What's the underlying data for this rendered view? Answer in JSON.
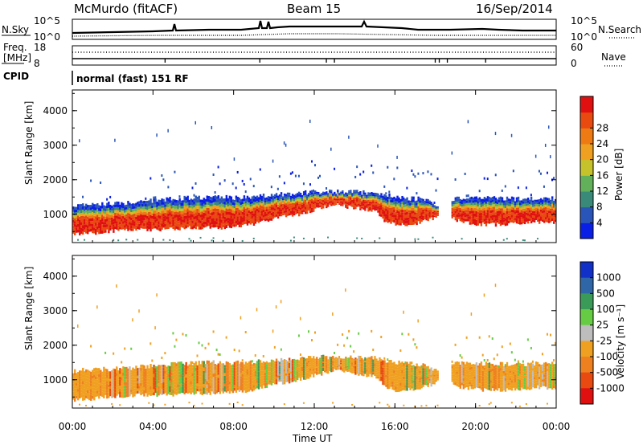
{
  "header": {
    "station": "McMurdo (fitACF)",
    "beam": "Beam 15",
    "date": "16/Sep/2014"
  },
  "strip": {
    "nsky_label": "N.Sky",
    "nsearch_label": "N.Search",
    "freq_label": "Freq.",
    "freq_unit": "[MHz]",
    "nave_label": "Nave",
    "cpid_label": "CPID",
    "cpid_text": "normal (fast) 151 RF",
    "noise_left_ticks": [
      "10^5",
      "10^0"
    ],
    "noise_right_ticks": [
      "10^5",
      "10^0"
    ],
    "freq_ticks": [
      "18",
      "8"
    ],
    "nave_ticks": [
      "60",
      "0"
    ]
  },
  "chart_data": [
    {
      "type": "heatmap",
      "title": "",
      "xlabel": "Time UT",
      "ylabel": "Slant Range [km]",
      "x_ticks": [
        "00:00",
        "04:00",
        "08:00",
        "12:00",
        "16:00",
        "20:00",
        "00:00"
      ],
      "y_ticks": [
        "1000",
        "2000",
        "3000",
        "4000"
      ],
      "ylim": [
        180,
        4600
      ],
      "colorbar": {
        "label": "Power [dB]",
        "ticks": [
          "4",
          "8",
          "12",
          "16",
          "20",
          "24",
          "28"
        ],
        "colors": [
          "#0a1fe6",
          "#2a55b8",
          "#3a8a7a",
          "#62b15a",
          "#c6c22c",
          "#f0a020",
          "#ee7a14",
          "#e84a10",
          "#e01010"
        ]
      },
      "echo_region": {
        "x_hours": [
          0,
          1,
          2,
          3,
          4,
          5,
          6,
          7,
          8,
          9,
          10,
          11,
          12,
          13,
          14,
          15,
          15.5,
          16,
          17,
          17.5,
          18,
          18.5,
          19,
          20,
          21,
          22,
          23,
          24
        ],
        "lower_km": [
          420,
          450,
          520,
          540,
          560,
          560,
          620,
          600,
          620,
          700,
          880,
          960,
          1120,
          1280,
          1180,
          1100,
          820,
          700,
          720,
          800,
          900,
          1100,
          820,
          720,
          700,
          720,
          780,
          760
        ],
        "upper_km": [
          1250,
          1300,
          1310,
          1350,
          1400,
          1450,
          1480,
          1500,
          1480,
          1520,
          1560,
          1600,
          1650,
          1660,
          1640,
          1620,
          1560,
          1500,
          1450,
          1450,
          1280,
          1200,
          1460,
          1480,
          1460,
          1440,
          1460,
          1450
        ],
        "gap_hours": [
          [
            18.2,
            18.8
          ]
        ]
      }
    },
    {
      "type": "heatmap",
      "title": "",
      "xlabel": "Time UT",
      "ylabel": "Slant Range [km]",
      "x_ticks": [
        "00:00",
        "04:00",
        "08:00",
        "12:00",
        "16:00",
        "20:00",
        "00:00"
      ],
      "y_ticks": [
        "1000",
        "2000",
        "3000",
        "4000"
      ],
      "ylim": [
        180,
        4600
      ],
      "colorbar": {
        "label": "Velocity [m s⁻¹]",
        "ticks": [
          "1000",
          "500",
          "100",
          "25",
          "-25",
          "-100",
          "-500",
          "-1000"
        ],
        "colors": [
          "#1030c8",
          "#2f66a8",
          "#3a9a58",
          "#66cc44",
          "#bdbdbd",
          "#f0a020",
          "#ee8020",
          "#e84a10",
          "#e01010"
        ]
      },
      "echo_region": {
        "x_hours": [
          0,
          1,
          2,
          3,
          4,
          5,
          6,
          7,
          8,
          9,
          10,
          11,
          12,
          13,
          14,
          15,
          15.5,
          16,
          17,
          17.5,
          18,
          18.5,
          19,
          20,
          21,
          22,
          23,
          24
        ],
        "lower_km": [
          420,
          450,
          520,
          540,
          560,
          560,
          620,
          600,
          620,
          700,
          880,
          960,
          1120,
          1280,
          1180,
          1100,
          820,
          700,
          720,
          800,
          900,
          1100,
          820,
          720,
          700,
          720,
          780,
          760
        ],
        "upper_km": [
          1250,
          1300,
          1310,
          1350,
          1400,
          1450,
          1480,
          1500,
          1480,
          1520,
          1560,
          1600,
          1650,
          1660,
          1640,
          1620,
          1560,
          1500,
          1450,
          1450,
          1280,
          1200,
          1460,
          1480,
          1460,
          1440,
          1460,
          1450
        ],
        "gap_hours": [
          [
            18.2,
            18.8
          ]
        ]
      }
    }
  ]
}
